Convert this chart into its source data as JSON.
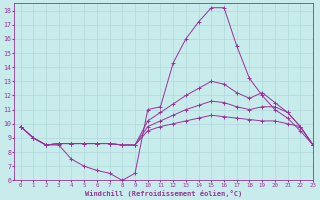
{
  "xlabel": "Windchill (Refroidissement éolien,°C)",
  "xlim": [
    -0.5,
    23
  ],
  "ylim": [
    6,
    18.5
  ],
  "yticks": [
    6,
    7,
    8,
    9,
    10,
    11,
    12,
    13,
    14,
    15,
    16,
    17,
    18
  ],
  "xticks": [
    0,
    1,
    2,
    3,
    4,
    5,
    6,
    7,
    8,
    9,
    10,
    11,
    12,
    13,
    14,
    15,
    16,
    17,
    18,
    19,
    20,
    21,
    22,
    23
  ],
  "bg_color": "#c8ecec",
  "line_color": "#993399",
  "grid_color": "#b0d8d8",
  "line1_y": [
    9.8,
    9.0,
    8.5,
    8.5,
    7.5,
    7.0,
    6.7,
    6.5,
    6.0,
    6.5,
    11.0,
    11.2,
    14.3,
    16.0,
    17.2,
    18.2,
    18.2,
    15.5,
    13.2,
    12.0,
    11.0,
    10.4,
    9.5,
    8.5
  ],
  "line2_y": [
    9.8,
    9.0,
    8.5,
    8.6,
    8.6,
    8.6,
    8.6,
    8.6,
    8.5,
    8.5,
    10.2,
    10.8,
    11.4,
    12.0,
    12.5,
    13.0,
    12.8,
    12.2,
    11.8,
    12.2,
    11.5,
    10.8,
    9.8,
    8.5
  ],
  "line3_y": [
    9.8,
    9.0,
    8.5,
    8.6,
    8.6,
    8.6,
    8.6,
    8.6,
    8.5,
    8.5,
    9.8,
    10.2,
    10.6,
    11.0,
    11.3,
    11.6,
    11.5,
    11.2,
    11.0,
    11.2,
    11.2,
    10.8,
    9.8,
    8.5
  ],
  "line4_y": [
    9.8,
    9.0,
    8.5,
    8.6,
    8.6,
    8.6,
    8.6,
    8.6,
    8.5,
    8.5,
    9.5,
    9.8,
    10.0,
    10.2,
    10.4,
    10.6,
    10.5,
    10.4,
    10.3,
    10.2,
    10.2,
    10.0,
    9.8,
    8.5
  ]
}
